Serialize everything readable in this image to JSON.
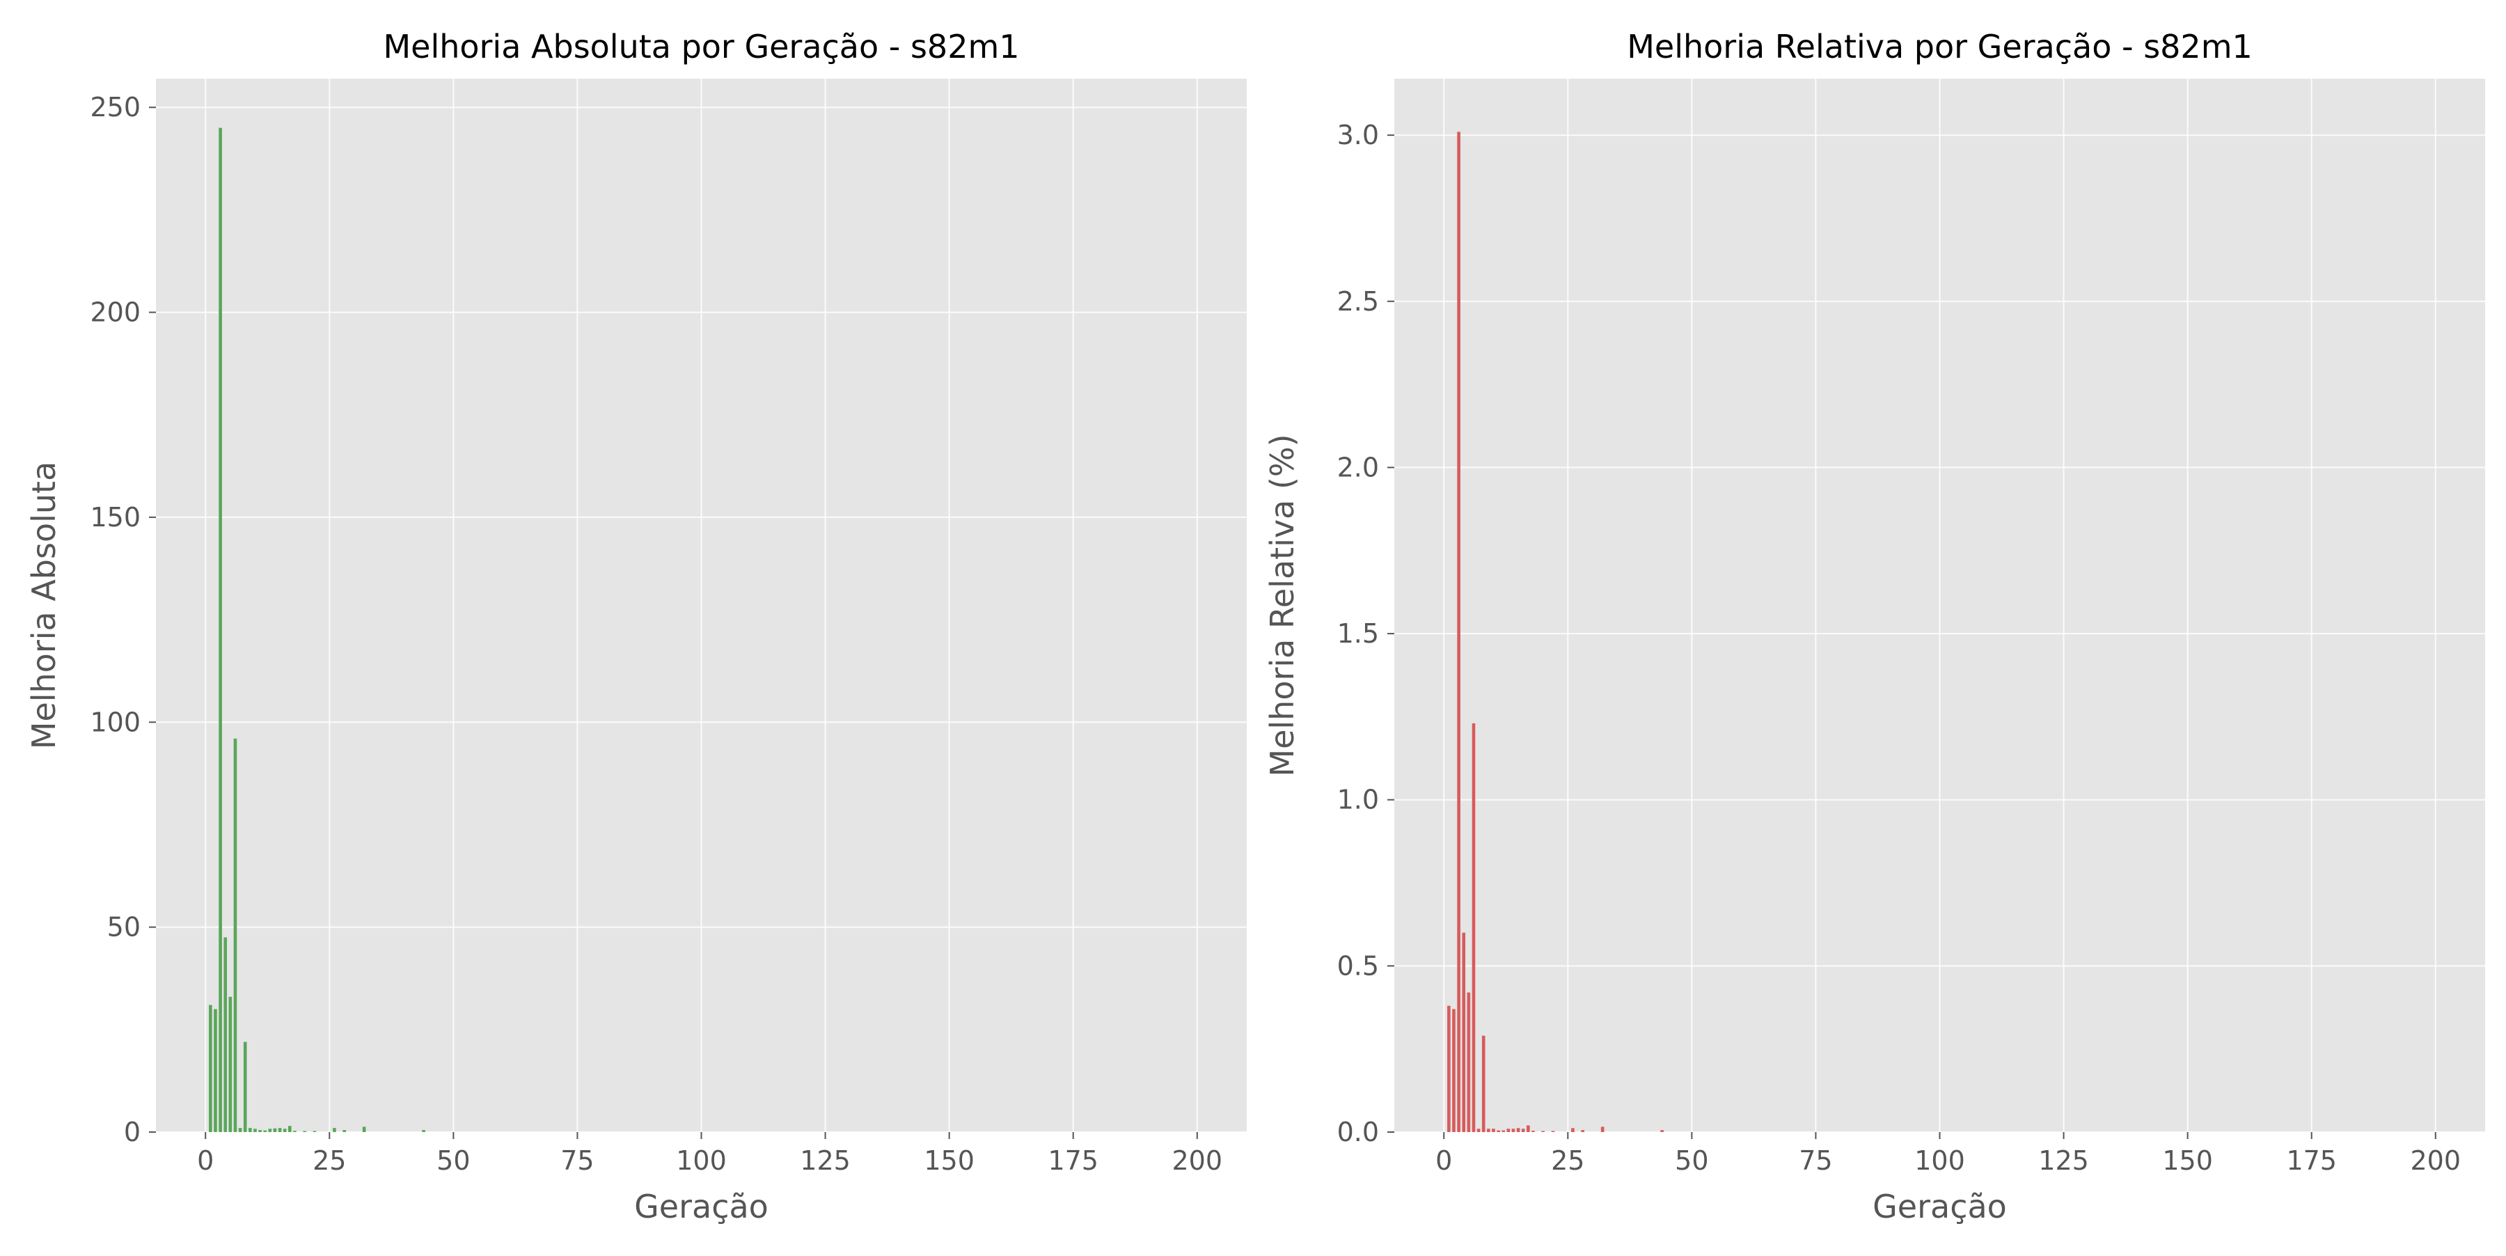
{
  "chart_data": [
    {
      "type": "bar",
      "title": "Melhoria Absoluta por Geração - s82m1",
      "xlabel": "Geração",
      "ylabel": "Melhoria Absoluta",
      "xlim": [
        -10,
        210
      ],
      "ylim": [
        0,
        257
      ],
      "x_ticks": [
        0,
        25,
        50,
        75,
        100,
        125,
        150,
        175,
        200
      ],
      "x_tick_labels": [
        "0",
        "25",
        "50",
        "75",
        "100",
        "125",
        "150",
        "175",
        "200"
      ],
      "y_ticks": [
        0,
        50,
        100,
        150,
        200,
        250
      ],
      "y_tick_labels": [
        "0",
        "50",
        "100",
        "150",
        "200",
        "250"
      ],
      "grid": true,
      "legend": "none",
      "color": "#5aa65a",
      "x": [
        1,
        2,
        3,
        4,
        5,
        6,
        7,
        8,
        9,
        10,
        11,
        12,
        13,
        14,
        15,
        16,
        17,
        18,
        20,
        22,
        26,
        28,
        32,
        44
      ],
      "values": [
        31,
        30,
        245,
        47.5,
        33,
        96,
        1,
        22,
        1,
        0.8,
        0.5,
        0.4,
        0.8,
        0.9,
        1.0,
        0.8,
        1.5,
        0.3,
        0.2,
        0.2,
        1.0,
        0.5,
        1.3,
        0.5
      ]
    },
    {
      "type": "bar",
      "title": "Melhoria Relativa por Geração - s82m1",
      "xlabel": "Geração",
      "ylabel": "Melhoria Relativa (%)",
      "xlim": [
        -10,
        210
      ],
      "ylim": [
        0,
        3.17
      ],
      "x_ticks": [
        0,
        25,
        50,
        75,
        100,
        125,
        150,
        175,
        200
      ],
      "x_tick_labels": [
        "0",
        "25",
        "50",
        "75",
        "100",
        "125",
        "150",
        "175",
        "200"
      ],
      "y_ticks": [
        0,
        0.5,
        1.0,
        1.5,
        2.0,
        2.5,
        3.0
      ],
      "y_tick_labels": [
        "0.0",
        "0.5",
        "1.0",
        "1.5",
        "2.0",
        "2.5",
        "3.0"
      ],
      "grid": true,
      "legend": "none",
      "color": "#d65c5c",
      "x": [
        1,
        2,
        3,
        4,
        5,
        6,
        7,
        8,
        9,
        10,
        11,
        12,
        13,
        14,
        15,
        16,
        17,
        18,
        20,
        22,
        26,
        28,
        32,
        44
      ],
      "values": [
        0.38,
        0.37,
        3.01,
        0.6,
        0.42,
        1.23,
        0.01,
        0.29,
        0.01,
        0.01,
        0.005,
        0.005,
        0.01,
        0.01,
        0.012,
        0.01,
        0.02,
        0.004,
        0.003,
        0.003,
        0.012,
        0.006,
        0.016,
        0.006
      ]
    }
  ]
}
